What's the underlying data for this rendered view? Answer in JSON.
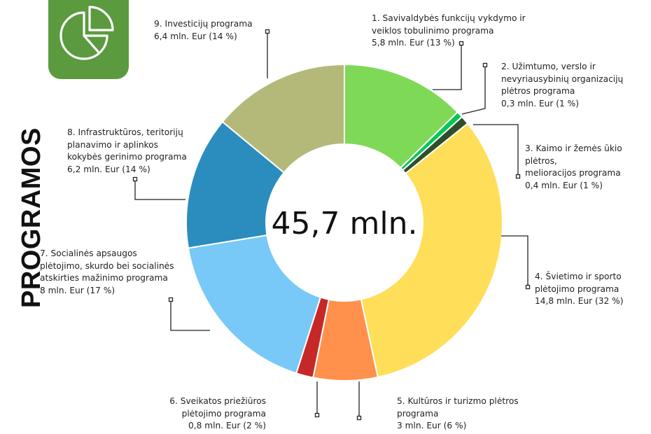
{
  "title": "PROGRAMOS",
  "icons": {
    "tile": "pie-chart-icon"
  },
  "center_label": "45,7 mln.",
  "colors": {
    "icon_tile": "#5b9a3e",
    "segments": [
      "#7ed957",
      "#00c853",
      "#2f4f2a",
      "#ffde59",
      "#ff914d",
      "#c62828",
      "#78c9f7",
      "#2b8cbe",
      "#b4b97a"
    ]
  },
  "labels": [
    {
      "text": "1. Savivaldybės funkcijų vykdymo ir\nveiklos tobulinimo programa\n5,8 mln. Eur (13 %)"
    },
    {
      "text": "2. Užimtumo, verslo ir\nnevyriausybinių organizacijų\nplėtros programa\n0,3 mln. Eur (1 %)"
    },
    {
      "text": "3. Kaimo ir žemės ūkio plėtros,\nmelioracijos  programa\n0,4 mln. Eur (1 %)"
    },
    {
      "text": "4. Švietimo ir sporto\nplėtojimo programa\n14,8 mln. Eur (32 %)"
    },
    {
      "text": "5. Kultūros ir turizmo plėtros\nprograma\n3 mln. Eur (6 %)"
    },
    {
      "text": "6. Sveikatos priežiūros\nplėtojimo programa\n0,8 mln. Eur (2 %)"
    },
    {
      "text": "7. Socialinės apsaugos\nplėtojimo, skurdo bei  socialinės\natskirties mažinimo programa\n8 mln. Eur (17 %)"
    },
    {
      "text": "8. Infrastruktūros, teritorijų\nplanavimo ir aplinkos\nkokybės gerinimo programa\n6,2 mln. Eur (14 %)"
    },
    {
      "text": "9. Investicijų programa\n6,4 mln. Eur (14 %)"
    }
  ],
  "chart_data": {
    "type": "pie",
    "variant": "donut",
    "total": 45.7,
    "total_label": "45,7 mln.",
    "unit": "mln. Eur",
    "slices": [
      {
        "name": "1. Savivaldybės funkcijų vykdymo ir veiklos tobulinimo programa",
        "value": 5.8,
        "percent": 13
      },
      {
        "name": "2. Užimtumo, verslo ir nevyriausybinių organizacijų plėtros programa",
        "value": 0.3,
        "percent": 1
      },
      {
        "name": "3. Kaimo ir žemės ūkio plėtros, melioracijos  programa",
        "value": 0.4,
        "percent": 1
      },
      {
        "name": "4. Švietimo ir sporto plėtojimo programa",
        "value": 14.8,
        "percent": 32
      },
      {
        "name": "5. Kultūros ir turizmo plėtros programa",
        "value": 3,
        "percent": 6
      },
      {
        "name": "6. Sveikatos priežiūros plėtojimo programa",
        "value": 0.8,
        "percent": 2
      },
      {
        "name": "7. Socialinės apsaugos plėtojimo, skurdo bei  socialinės atskirties mažinimo programa",
        "value": 8,
        "percent": 17
      },
      {
        "name": "8. Infrastruktūros, teritorijų planavimo ir aplinkos kokybės gerinimo programa",
        "value": 6.2,
        "percent": 14
      },
      {
        "name": "9. Investicijų programa",
        "value": 6.4,
        "percent": 14
      }
    ]
  }
}
